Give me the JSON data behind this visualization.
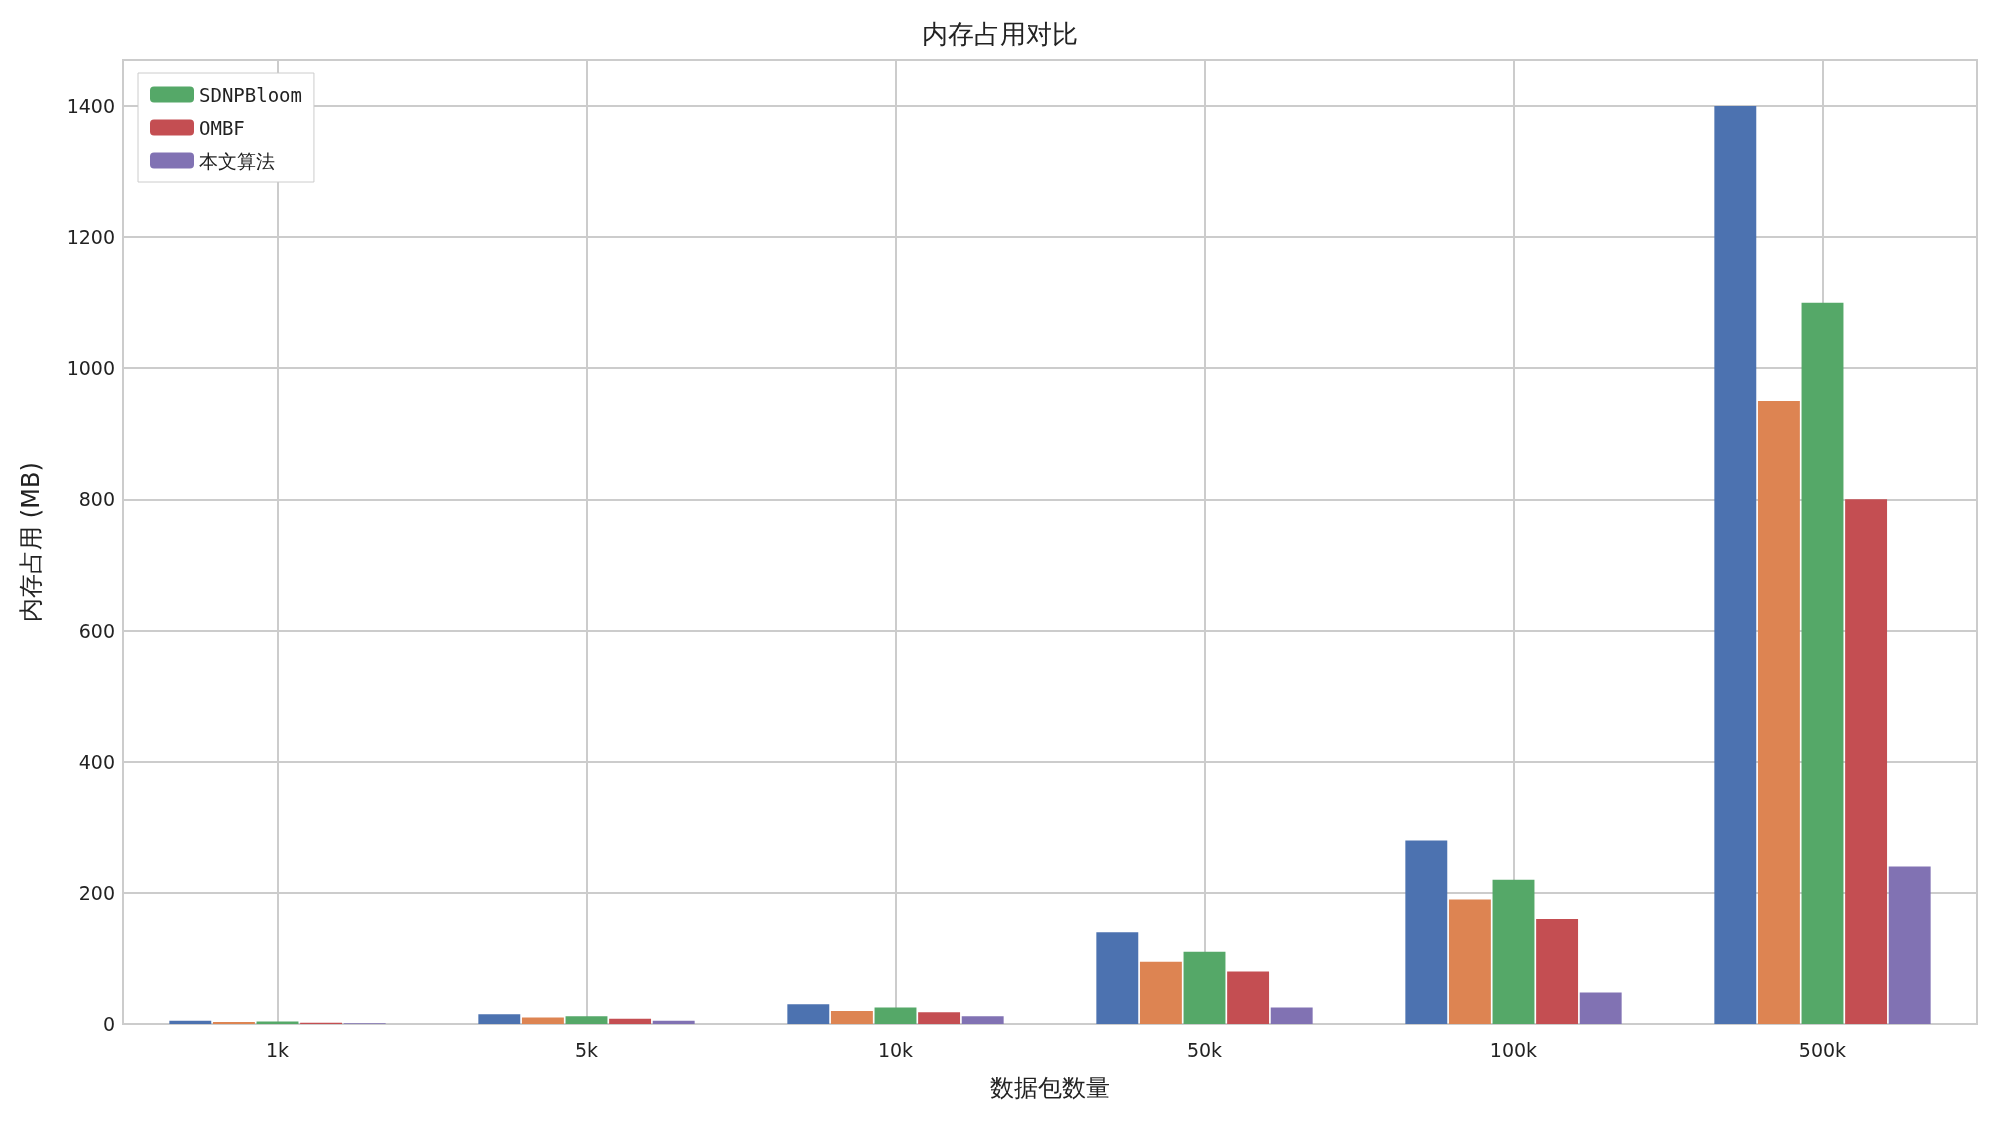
{
  "chart_data": {
    "type": "bar",
    "title": "内存占用对比",
    "xlabel": "数据包数量",
    "ylabel": "内存占用 (MB)",
    "categories": [
      "1k",
      "5k",
      "10k",
      "50k",
      "100k",
      "500k"
    ],
    "series": [
      {
        "color": "#4c72b0",
        "values": [
          5,
          15,
          30,
          140,
          280,
          1400
        ]
      },
      {
        "color": "#dd8452",
        "values": [
          3,
          10,
          20,
          95,
          190,
          950
        ]
      },
      {
        "name": "SDNPBloom",
        "color": "#55a868",
        "values": [
          4,
          12,
          25,
          110,
          220,
          1100
        ]
      },
      {
        "name": "OMBF",
        "color": "#c44e52",
        "values": [
          2,
          8,
          18,
          80,
          160,
          800
        ]
      },
      {
        "name": "本文算法",
        "color": "#8172b3",
        "values": [
          1,
          5,
          12,
          25,
          48,
          240
        ]
      }
    ],
    "ylim": [
      0,
      1470
    ],
    "yticks": [
      0,
      200,
      400,
      600,
      800,
      1000,
      1200,
      1400
    ],
    "grid": true,
    "legend": "top left"
  }
}
